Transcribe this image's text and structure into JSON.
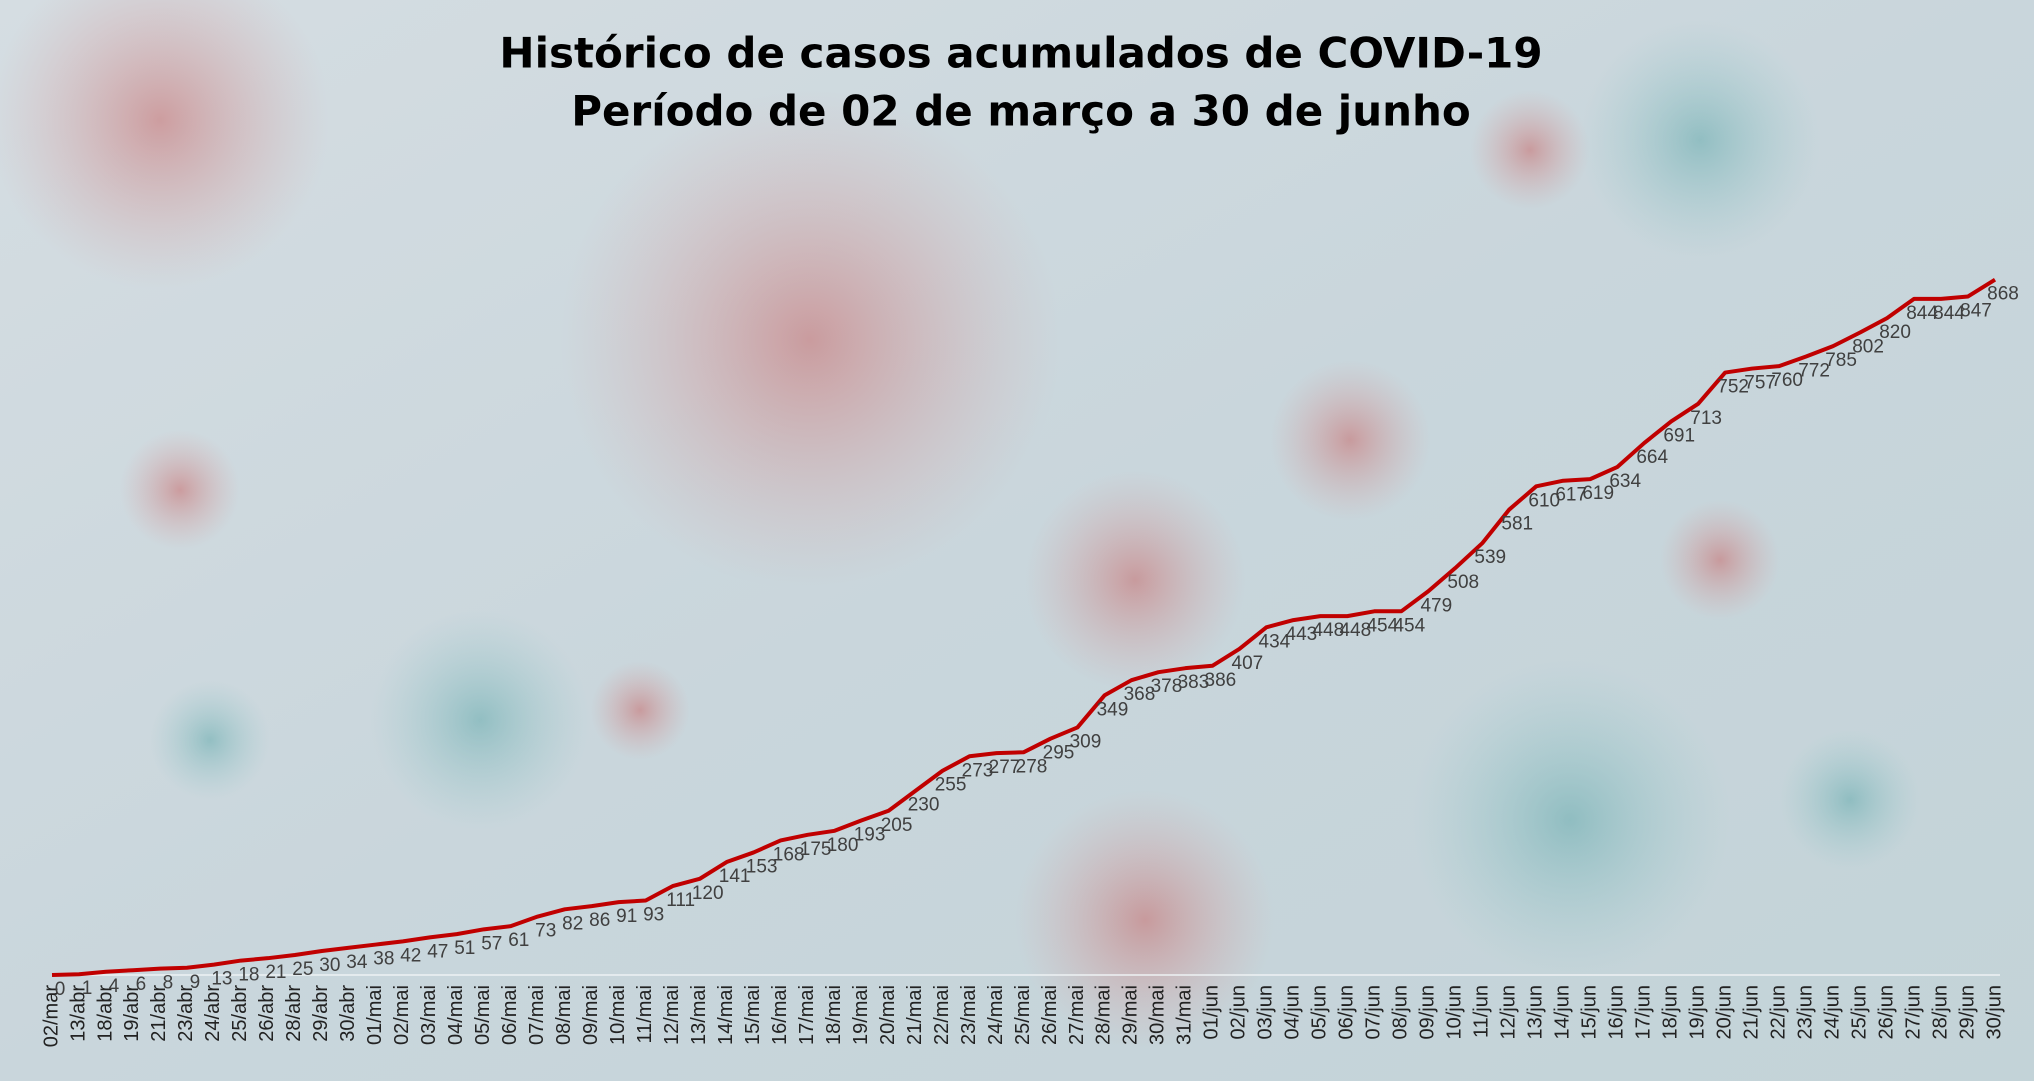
{
  "chart_data": {
    "type": "line",
    "title": [
      "Histórico de casos acumulados de COVID-19",
      "Período de 02 de março a 30 de junho"
    ],
    "categories": [
      "02/mar",
      "13/abr",
      "18/abr",
      "19/abr",
      "21/abr",
      "23/abr",
      "24/abr",
      "25/abr",
      "26/abr",
      "28/abr",
      "29/abr",
      "30/abr",
      "01/mai",
      "02/mai",
      "03/mai",
      "04/mai",
      "05/mai",
      "06/mai",
      "07/mai",
      "08/mai",
      "09/mai",
      "10/mai",
      "11/mai",
      "12/mai",
      "13/mai",
      "14/mai",
      "15/mai",
      "16/mai",
      "17/mai",
      "18/mai",
      "19/mai",
      "20/mai",
      "21/mai",
      "22/mai",
      "23/mai",
      "24/mai",
      "25/mai",
      "26/mai",
      "27/mai",
      "28/mai",
      "29/mai",
      "30/mai",
      "31/mai",
      "01/jun",
      "02/jun",
      "03/jun",
      "04/jun",
      "05/jun",
      "06/jun",
      "07/jun",
      "08/jun",
      "09/jun",
      "10/jun",
      "11/jun",
      "12/jun",
      "13/jun",
      "14/jun",
      "15/jun",
      "16/jun",
      "17/jun",
      "18/jun",
      "19/jun",
      "20/jun",
      "21/jun",
      "22/jun",
      "23/jun",
      "24/jun",
      "25/jun",
      "26/jun",
      "27/jun",
      "28/jun",
      "29/jun",
      "30/jun"
    ],
    "values": [
      0,
      1,
      4,
      6,
      8,
      9,
      13,
      18,
      21,
      25,
      30,
      34,
      38,
      42,
      47,
      51,
      57,
      61,
      73,
      82,
      86,
      91,
      93,
      111,
      120,
      141,
      153,
      168,
      175,
      180,
      193,
      205,
      230,
      255,
      273,
      277,
      278,
      295,
      309,
      349,
      368,
      378,
      383,
      386,
      407,
      434,
      443,
      448,
      448,
      454,
      454,
      479,
      508,
      539,
      581,
      610,
      617,
      619,
      634,
      664,
      691,
      713,
      752,
      757,
      760,
      772,
      785,
      802,
      820,
      844,
      844,
      847,
      868
    ],
    "color": "#c00000",
    "ylim": [
      0,
      900
    ]
  }
}
